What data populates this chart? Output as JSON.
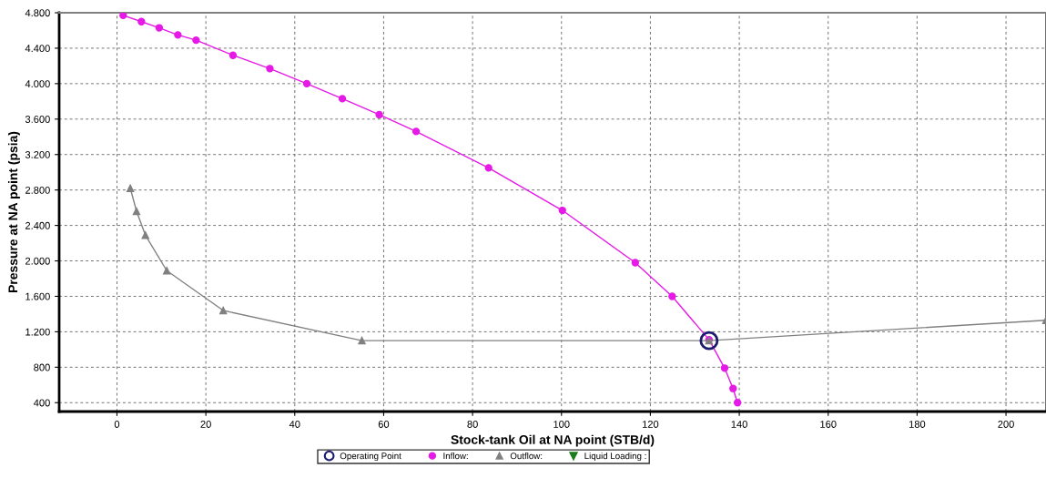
{
  "chart_data": {
    "type": "line",
    "xlabel": "Stock-tank Oil at NA point (STB/d)",
    "ylabel": "Pressure at NA point (psia)",
    "xlim": [
      -13,
      209
    ],
    "xticks": [
      0,
      20,
      40,
      60,
      80,
      100,
      120,
      140,
      160,
      180,
      200
    ],
    "ylim": [
      300,
      4800
    ],
    "yticks": [
      {
        "value": 400,
        "label": "400"
      },
      {
        "value": 800,
        "label": "800"
      },
      {
        "value": 1200,
        "label": "1.200"
      },
      {
        "value": 1600,
        "label": "1.600"
      },
      {
        "value": 2000,
        "label": "2.000"
      },
      {
        "value": 2400,
        "label": "2.400"
      },
      {
        "value": 2800,
        "label": "2.800"
      },
      {
        "value": 3200,
        "label": "3.200"
      },
      {
        "value": 3600,
        "label": "3.600"
      },
      {
        "value": 4000,
        "label": "4.000"
      },
      {
        "value": 4400,
        "label": "4.400"
      },
      {
        "value": 4800,
        "label": "4.800"
      }
    ],
    "grid": true,
    "legend": "bottom",
    "series": [
      {
        "name": "Operating Point",
        "type": "scatter",
        "marker": "circle",
        "color": "#1a1a6e",
        "x": [
          133.2
        ],
        "values": [
          1100
        ]
      },
      {
        "name": "Inflow:",
        "marker": "circle",
        "color": "#e619e6",
        "x": [
          1.4,
          5.5,
          9.5,
          13.7,
          17.8,
          26.1,
          34.4,
          42.7,
          50.7,
          59.0,
          67.3,
          83.6,
          100.2,
          116.6,
          124.9,
          133.2,
          136.7,
          138.6,
          139.6
        ],
        "values": [
          4770,
          4700,
          4630,
          4550,
          4490,
          4320,
          4170,
          4000,
          3830,
          3650,
          3460,
          3050,
          2570,
          1980,
          1600,
          1110,
          790,
          560,
          400
        ]
      },
      {
        "name": "Outflow:",
        "marker": "triangle",
        "color": "#808080",
        "x": [
          3.0,
          4.4,
          6.4,
          11.2,
          23.9,
          55.1,
          133.2,
          209
        ],
        "values": [
          2820,
          2560,
          2290,
          1890,
          1440,
          1100,
          1100,
          1330
        ]
      },
      {
        "name": "Liquid Loading :",
        "type": "scatter",
        "marker": "triangle_down",
        "color": "#1e7a1e"
      }
    ]
  }
}
